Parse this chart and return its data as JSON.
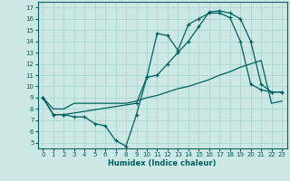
{
  "xlabel": "Humidex (Indice chaleur)",
  "background_color": "#cce8e4",
  "grid_color": "#b0d8d2",
  "line_color": "#006060",
  "xlim": [
    -0.5,
    23.5
  ],
  "ylim": [
    4.5,
    17.5
  ],
  "xticks": [
    0,
    1,
    2,
    3,
    4,
    5,
    6,
    7,
    8,
    9,
    10,
    11,
    12,
    13,
    14,
    15,
    16,
    17,
    18,
    19,
    20,
    21,
    22,
    23
  ],
  "yticks": [
    5,
    6,
    7,
    8,
    9,
    10,
    11,
    12,
    13,
    14,
    15,
    16,
    17
  ],
  "series1_x": [
    0,
    1,
    2,
    3,
    4,
    5,
    6,
    7,
    8,
    9,
    10,
    11,
    12,
    13,
    14,
    15,
    16,
    17,
    18,
    19,
    20,
    21,
    22,
    23
  ],
  "series1_y": [
    9.0,
    8.0,
    8.0,
    8.5,
    8.5,
    8.5,
    8.5,
    8.5,
    8.5,
    8.7,
    9.0,
    9.2,
    9.5,
    9.8,
    10.0,
    10.3,
    10.6,
    11.0,
    11.3,
    11.7,
    12.0,
    12.3,
    8.5,
    8.7
  ],
  "series2_x": [
    0,
    1,
    2,
    3,
    4,
    5,
    6,
    7,
    8,
    9,
    10,
    11,
    12,
    13,
    14,
    15,
    16,
    17,
    18,
    19,
    20,
    21,
    22,
    23
  ],
  "series2_y": [
    9.0,
    7.5,
    7.5,
    7.3,
    7.3,
    6.7,
    6.5,
    5.2,
    4.7,
    7.5,
    10.8,
    14.7,
    14.5,
    13.2,
    15.5,
    16.0,
    16.5,
    16.5,
    16.1,
    14.0,
    10.2,
    9.7,
    9.5,
    9.5
  ],
  "series3_x": [
    0,
    1,
    2,
    9,
    10,
    11,
    12,
    13,
    14,
    15,
    16,
    17,
    18,
    19,
    20,
    21,
    22,
    23
  ],
  "series3_y": [
    9.0,
    7.5,
    7.5,
    8.5,
    10.8,
    11.0,
    12.0,
    13.0,
    14.0,
    15.3,
    16.6,
    16.7,
    16.5,
    16.0,
    14.0,
    10.2,
    9.5,
    9.5
  ]
}
